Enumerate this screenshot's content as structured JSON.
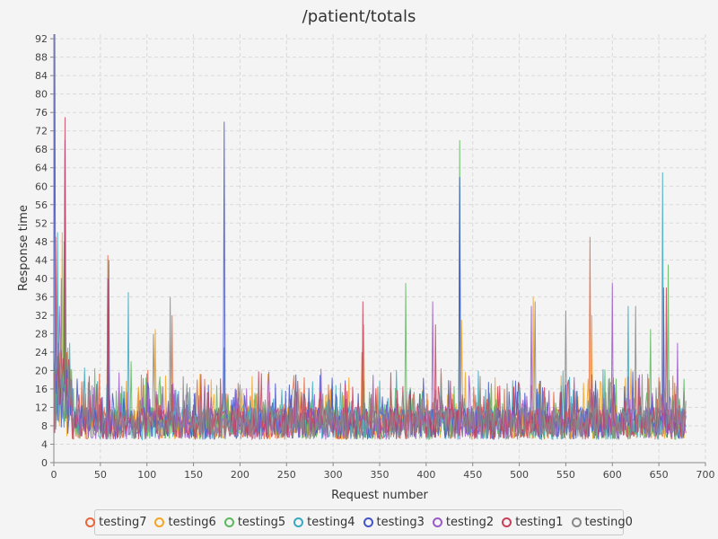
{
  "chart_data": {
    "type": "line",
    "title": "/patient/totals",
    "xlabel": "Request number",
    "ylabel": "Response time",
    "xlim": [
      0,
      700
    ],
    "ylim": [
      0,
      93
    ],
    "xticks": [
      0,
      50,
      100,
      150,
      200,
      250,
      300,
      350,
      400,
      450,
      500,
      550,
      600,
      650,
      700
    ],
    "yticks": [
      0,
      4,
      8,
      12,
      16,
      20,
      24,
      28,
      32,
      36,
      40,
      44,
      48,
      52,
      56,
      60,
      64,
      68,
      72,
      76,
      80,
      84,
      88,
      92
    ],
    "grid": true,
    "legend_position": "bottom",
    "n_points": 680,
    "typical_range": [
      4,
      20
    ],
    "series": [
      {
        "name": "testing7",
        "color": "#e8663a",
        "peaks": [
          [
            12,
            60
          ],
          [
            58,
            45
          ],
          [
            127,
            32
          ],
          [
            331,
            24
          ],
          [
            576,
            49
          ],
          [
            655,
            30
          ]
        ]
      },
      {
        "name": "testing6",
        "color": "#f2a623",
        "peaks": [
          [
            9,
            50
          ],
          [
            58,
            44
          ],
          [
            109,
            29
          ],
          [
            333,
            30
          ],
          [
            438,
            31
          ],
          [
            578,
            32
          ],
          [
            515,
            36
          ]
        ]
      },
      {
        "name": "testing5",
        "color": "#5cb85c",
        "peaks": [
          [
            11,
            48
          ],
          [
            83,
            22
          ],
          [
            378,
            39
          ],
          [
            436,
            70
          ],
          [
            660,
            43
          ],
          [
            641,
            29
          ]
        ]
      },
      {
        "name": "testing4",
        "color": "#3aa8c1",
        "peaks": [
          [
            4,
            50
          ],
          [
            80,
            37
          ],
          [
            183,
            25
          ],
          [
            436,
            60
          ],
          [
            654,
            63
          ],
          [
            617,
            34
          ]
        ]
      },
      {
        "name": "testing3",
        "color": "#4455c8",
        "peaks": [
          [
            1,
            93
          ],
          [
            12,
            70
          ],
          [
            183,
            74
          ],
          [
            436,
            62
          ],
          [
            59,
            44
          ],
          [
            655,
            38
          ]
        ]
      },
      {
        "name": "testing2",
        "color": "#9b59c9",
        "peaks": [
          [
            6,
            34
          ],
          [
            407,
            35
          ],
          [
            600,
            39
          ],
          [
            513,
            34
          ],
          [
            670,
            26
          ]
        ]
      },
      {
        "name": "testing1",
        "color": "#c9405a",
        "peaks": [
          [
            2,
            49
          ],
          [
            12,
            75
          ],
          [
            58,
            40
          ],
          [
            332,
            35
          ],
          [
            410,
            30
          ],
          [
            658,
            38
          ]
        ]
      },
      {
        "name": "testing0",
        "color": "#888888",
        "peaks": [
          [
            8,
            40
          ],
          [
            107,
            28
          ],
          [
            125,
            36
          ],
          [
            550,
            33
          ],
          [
            625,
            34
          ],
          [
            517,
            35
          ]
        ]
      }
    ]
  }
}
